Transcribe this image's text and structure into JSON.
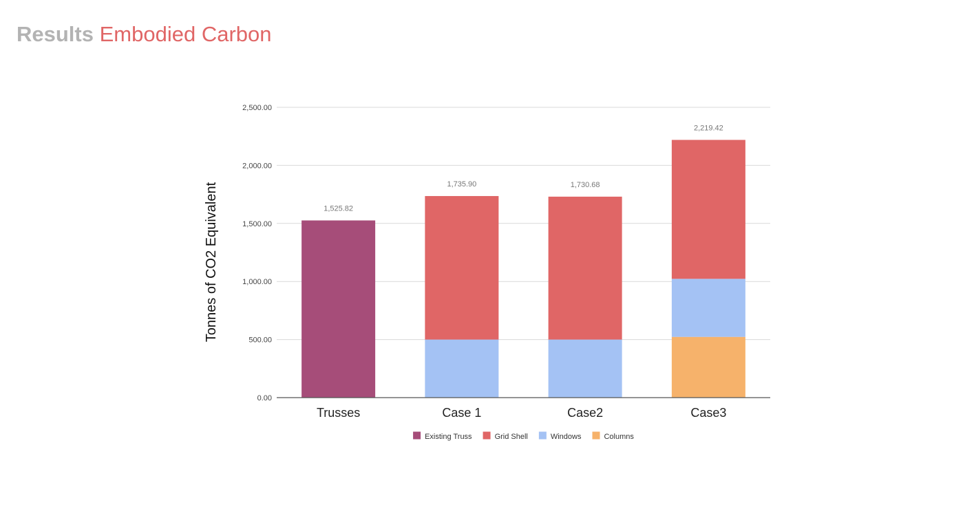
{
  "header": {
    "title_part1": "Results",
    "title_part2": "Embodied Carbon"
  },
  "colors": {
    "title_gray": "#b3b3b3",
    "title_accent": "#e06666"
  },
  "chart_data": {
    "type": "bar",
    "stacked": true,
    "categories": [
      "Trusses",
      "Case 1",
      "Case2",
      "Case3"
    ],
    "series": [
      {
        "name": "Existing Truss",
        "color": "#a64d79",
        "values": [
          1525.82,
          0,
          0,
          0
        ]
      },
      {
        "name": "Grid Shell",
        "color": "#e06666",
        "values": [
          0,
          1235.9,
          1230.68,
          1196.42
        ]
      },
      {
        "name": "Windows",
        "color": "#a4c2f4",
        "values": [
          0,
          500,
          500,
          500
        ]
      },
      {
        "name": "Columns",
        "color": "#f6b26b",
        "values": [
          0,
          0,
          0,
          523
        ]
      }
    ],
    "totals": [
      "1,525.82",
      "1,735.90",
      "1,730.68",
      "2,219.42"
    ],
    "stack_order": [
      "Columns",
      "Windows",
      "Existing Truss",
      "Grid Shell"
    ],
    "ylabel": "Tonnes of CO2 Equivalent",
    "ylim": [
      0,
      2500
    ],
    "yticks": [
      0,
      500,
      1000,
      1500,
      2000,
      2500
    ],
    "ytick_labels": [
      "0.00",
      "500.00",
      "1,000.00",
      "1,500.00",
      "2,000.00",
      "2,500.00"
    ],
    "grid": true,
    "legend_position": "bottom"
  }
}
